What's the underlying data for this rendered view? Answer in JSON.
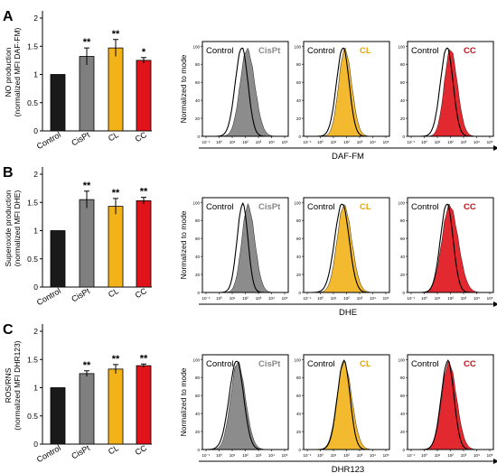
{
  "panels": [
    {
      "letter": "A",
      "ylabel": [
        "NO production",
        "(normalized MFI DAF-FM)"
      ],
      "xlabel": "DAF-FM"
    },
    {
      "letter": "B",
      "ylabel": [
        "Superoxide production",
        "(normalized MFI DHE)"
      ],
      "xlabel": "DHE"
    },
    {
      "letter": "C",
      "ylabel": [
        "ROS/RNS",
        "(normalized MFI DHR123)"
      ],
      "xlabel": "DHR123"
    }
  ],
  "histogram_ylabel": "Normalized to mode",
  "histogram_yticks": [
    "0",
    "20",
    "40",
    "60",
    "80",
    "100"
  ],
  "histogram_xticks": [
    "10⁻¹",
    "10⁰",
    "10¹",
    "10²",
    "10³",
    "10⁴",
    "10⁵"
  ],
  "histogram_legend": {
    "control": "Control",
    "treatments": [
      "CisPt",
      "CL",
      "CC"
    ]
  },
  "colors": {
    "Control": "#1a1a1a",
    "CisPt": "#7f7f7f",
    "CL": "#f2b318",
    "CC": "#e0121a"
  },
  "chart_data": [
    {
      "type": "bar",
      "title": "",
      "ylabel": "NO production (normalized MFI DAF-FM)",
      "categories": [
        "Control",
        "CisPt",
        "CL",
        "CC"
      ],
      "values": [
        1.0,
        1.32,
        1.47,
        1.25
      ],
      "errors": [
        0.0,
        0.15,
        0.15,
        0.05
      ],
      "significance": [
        "",
        "**",
        "**",
        "*"
      ],
      "ylim": [
        0,
        2
      ],
      "yticks": [
        0,
        0.5,
        1,
        1.5,
        2
      ]
    },
    {
      "type": "bar",
      "title": "",
      "ylabel": "Superoxide production (normalized MFI DHE)",
      "categories": [
        "Control",
        "CisPt",
        "CL",
        "CC"
      ],
      "values": [
        1.0,
        1.55,
        1.43,
        1.53
      ],
      "errors": [
        0.0,
        0.15,
        0.14,
        0.06
      ],
      "significance": [
        "",
        "**",
        "**",
        "**"
      ],
      "ylim": [
        0,
        2
      ],
      "yticks": [
        0,
        0.5,
        1,
        1.5,
        2
      ]
    },
    {
      "type": "bar",
      "title": "",
      "ylabel": "ROS/RNS (normalized MFI DHR123)",
      "categories": [
        "Control",
        "CisPt",
        "CL",
        "CC"
      ],
      "values": [
        1.0,
        1.25,
        1.33,
        1.39
      ],
      "errors": [
        0.0,
        0.05,
        0.08,
        0.03
      ],
      "significance": [
        "",
        "**",
        "**",
        "**"
      ],
      "ylim": [
        0,
        2
      ],
      "yticks": [
        0,
        0.5,
        1,
        1.5,
        2
      ],
      "ytick_labels": [
        "0",
        "0.5",
        "1",
        "1.5",
        "2"
      ]
    }
  ]
}
